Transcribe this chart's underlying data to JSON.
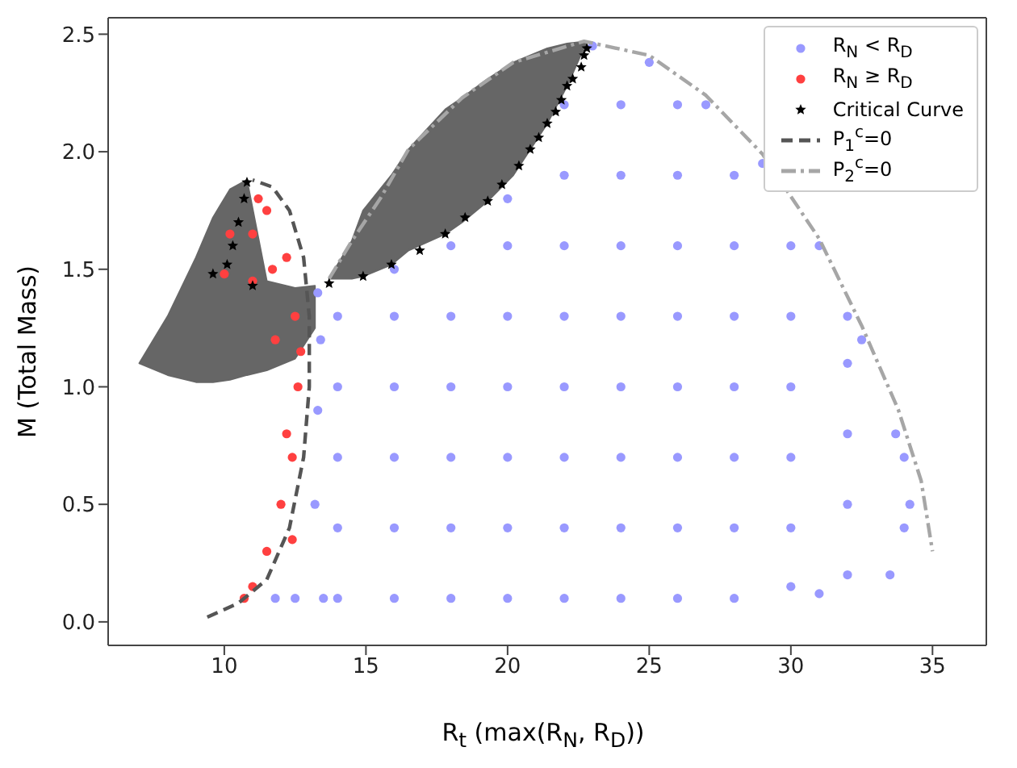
{
  "chart_data": {
    "type": "scatter",
    "xlabel": "R$_{t}$ (max(R$_{N}$, R$_{D}$))",
    "ylabel": "M (Total Mass)",
    "xlim": [
      5.9,
      36.9
    ],
    "ylim": [
      -0.1,
      2.57
    ],
    "xticks": [
      10,
      15,
      20,
      25,
      30,
      35
    ],
    "yticks": [
      {
        "value": 0,
        "label": "0.0"
      },
      {
        "value": 0.5,
        "label": "0.5"
      },
      {
        "value": 1,
        "label": "1.0"
      },
      {
        "value": 1.5,
        "label": "1.5"
      },
      {
        "value": 2,
        "label": "2.0"
      },
      {
        "value": 2.5,
        "label": "2.5"
      }
    ],
    "legend": "top right",
    "series": [
      {
        "type": "area",
        "color": "#666666",
        "x": [
          7,
          8,
          9,
          9.6,
          10.2,
          10.8,
          11.5,
          12.5,
          13.2,
          13.2,
          12.5,
          11.5,
          10.8,
          10.2,
          9.6,
          9,
          8
        ],
        "values": [
          1.1,
          1.3,
          1.55,
          1.72,
          1.84,
          1.88,
          1.45,
          1.42,
          1.43,
          1.25,
          1.12,
          1.07,
          1.05,
          1.03,
          1.02,
          1.02,
          1.05
        ]
      },
      {
        "type": "area",
        "color": "#666666",
        "x": [
          13.7,
          14.5,
          14.9,
          15.9,
          16.5,
          17.8,
          18.4,
          19.3,
          20.2,
          20.8,
          21.4,
          22.1,
          22.8,
          22.1,
          21.4,
          20.8,
          20.2,
          19.3,
          18.4,
          17.8,
          16.5,
          15.9,
          14.9,
          14.5
        ],
        "values": [
          1.46,
          1.62,
          1.75,
          1.9,
          2.01,
          2.18,
          2.23,
          2.31,
          2.38,
          2.41,
          2.44,
          2.46,
          2.47,
          2.28,
          2.12,
          2.01,
          1.9,
          1.79,
          1.7,
          1.65,
          1.58,
          1.52,
          1.47,
          1.46
        ]
      },
      {
        "name": "R$_{N}$ < R$_{D}$",
        "color": "#9999ff",
        "marker": "circle",
        "x": [
          14,
          14,
          14,
          14,
          14,
          16,
          16,
          16,
          16,
          16,
          16,
          18,
          18,
          18,
          18,
          18,
          18,
          20,
          20,
          20,
          20,
          20,
          20,
          20,
          22,
          22,
          22,
          22,
          22,
          22,
          22,
          22,
          24,
          24,
          24,
          24,
          24,
          24,
          24,
          24,
          26,
          26,
          26,
          26,
          26,
          26,
          26,
          26,
          28,
          28,
          28,
          28,
          28,
          28,
          28,
          30,
          30,
          30,
          30,
          30,
          30,
          32,
          32,
          32,
          32,
          32,
          34,
          34,
          13.5,
          13.2,
          13.3,
          13.4,
          13.3,
          23,
          25,
          27,
          29,
          31,
          32.5,
          33.7,
          34.2,
          33.5,
          31,
          11.8,
          12.5
        ],
        "values": [
          0.1,
          0.4,
          0.7,
          1.0,
          1.3,
          0.1,
          0.4,
          0.7,
          1.0,
          1.3,
          1.5,
          0.1,
          0.4,
          0.7,
          1.0,
          1.3,
          1.6,
          0.1,
          0.4,
          0.7,
          1.0,
          1.3,
          1.6,
          1.8,
          0.1,
          0.4,
          0.7,
          1.0,
          1.3,
          1.6,
          1.9,
          2.2,
          0.1,
          0.4,
          0.7,
          1.0,
          1.3,
          1.6,
          1.9,
          2.2,
          0.1,
          0.4,
          0.7,
          1.0,
          1.3,
          1.6,
          1.9,
          2.2,
          0.1,
          0.4,
          0.7,
          1.0,
          1.3,
          1.6,
          1.9,
          0.15,
          0.4,
          0.7,
          1.0,
          1.3,
          1.6,
          0.2,
          0.5,
          0.8,
          1.1,
          1.3,
          0.4,
          0.7,
          0.1,
          0.5,
          0.9,
          1.2,
          1.4,
          2.45,
          2.38,
          2.2,
          1.95,
          1.6,
          1.2,
          0.8,
          0.5,
          0.2,
          0.12,
          0.1,
          0.1
        ]
      },
      {
        "name": "R$_{N}$ ≥ R$_{D}$",
        "color": "#ff4040",
        "marker": "circle",
        "x": [
          11.2,
          10.2,
          11.5,
          12.2,
          10,
          11,
          12.5,
          11.8,
          12.6,
          12.2,
          12.4,
          12,
          12.4,
          11.5,
          11,
          10.7,
          12.7,
          11.7,
          11
        ],
        "values": [
          1.8,
          1.65,
          1.75,
          1.55,
          1.48,
          1.45,
          1.3,
          1.2,
          1.0,
          0.8,
          0.7,
          0.5,
          0.35,
          0.3,
          0.15,
          0.1,
          1.15,
          1.5,
          1.65
        ]
      },
      {
        "name": "Critical Curve",
        "color": "#000000",
        "marker": "star",
        "x": [
          10.8,
          10.7,
          10.5,
          10.3,
          10.1,
          9.6,
          11,
          13.7,
          14.9,
          15.9,
          16.9,
          17.8,
          18.5,
          19.3,
          19.8,
          20.4,
          20.8,
          21.1,
          21.4,
          21.7,
          21.9,
          22.1,
          22.3,
          22.6,
          22.7,
          22.8
        ],
        "values": [
          1.87,
          1.8,
          1.7,
          1.6,
          1.52,
          1.48,
          1.43,
          1.44,
          1.47,
          1.52,
          1.58,
          1.65,
          1.72,
          1.79,
          1.86,
          1.94,
          2.01,
          2.06,
          2.12,
          2.17,
          2.22,
          2.28,
          2.31,
          2.36,
          2.41,
          2.44
        ]
      },
      {
        "type": "line",
        "name": "P$_{1}$$^{c}$=0",
        "color": "#555555",
        "line_style": "dashed",
        "marker": "none",
        "x": [
          9.4,
          10.5,
          11.5,
          12.3,
          12.8,
          13,
          13,
          12.8,
          12.3,
          11.7,
          11
        ],
        "values": [
          0.02,
          0.08,
          0.18,
          0.4,
          0.7,
          1.0,
          1.3,
          1.55,
          1.75,
          1.85,
          1.88
        ]
      },
      {
        "type": "line",
        "name": "P$_{2}$$^{c}$=0",
        "color": "#a6a6a6",
        "line_style": "dashdot",
        "marker": "none",
        "x": [
          13.7,
          14.5,
          15.5,
          16.5,
          18.4,
          20.2,
          22.7,
          25,
          27,
          29,
          31,
          32.5,
          33.8,
          34.6,
          35
        ],
        "values": [
          1.46,
          1.62,
          1.8,
          2.01,
          2.23,
          2.38,
          2.47,
          2.41,
          2.24,
          1.99,
          1.63,
          1.26,
          0.9,
          0.6,
          0.3
        ]
      }
    ]
  }
}
